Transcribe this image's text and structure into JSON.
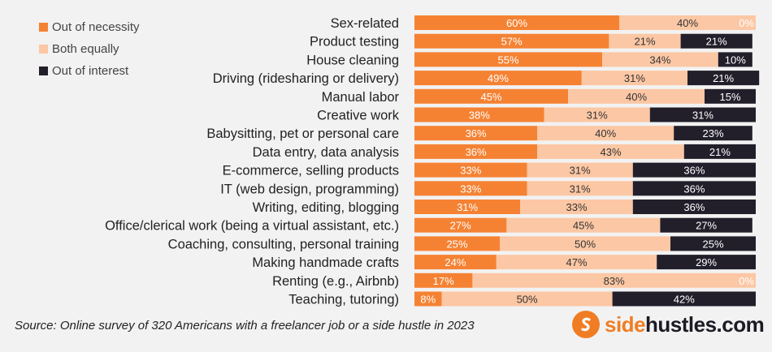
{
  "legend": [
    {
      "label": "Out of necessity",
      "color": "#f58233"
    },
    {
      "label": "Both equally",
      "color": "#fcc7a4"
    },
    {
      "label": "Out of interest",
      "color": "#221f2b"
    }
  ],
  "source": "Source: Online survey of 320 Americans with a freelancer job or a side hustle in 2023",
  "brand": {
    "prefix": "side",
    "rest": "hustles.com",
    "icon": "s-logo-icon"
  },
  "chart_data": {
    "type": "bar",
    "orientation": "horizontal",
    "stacked": true,
    "normalized": true,
    "title": "",
    "xlabel": "",
    "ylabel": "",
    "categories": [
      "Sex-related",
      "Product testing",
      "House cleaning",
      "Driving (ridesharing or delivery)",
      "Manual labor",
      "Creative work",
      "Babysitting, pet or personal care",
      "Data entry, data analysis",
      "E-commerce, selling products",
      "IT (web design, programming)",
      "Writing, editing, blogging",
      "Office/clerical work (being a virtual assistant, etc.)",
      "Coaching, consulting, personal training",
      "Making handmade crafts",
      "Renting (e.g., Airbnb)",
      "Teaching, tutoring)"
    ],
    "series": [
      {
        "name": "Out of necessity",
        "color": "#f58233",
        "label_color": "#ffffff",
        "values": [
          60,
          57,
          55,
          49,
          45,
          38,
          36,
          36,
          33,
          33,
          31,
          27,
          25,
          24,
          17,
          8
        ]
      },
      {
        "name": "Both equally",
        "color": "#fcc7a4",
        "label_color": "#333333",
        "values": [
          40,
          21,
          34,
          31,
          40,
          31,
          40,
          43,
          31,
          31,
          33,
          45,
          50,
          47,
          83,
          50
        ]
      },
      {
        "name": "Out of interest",
        "color": "#221f2b",
        "label_color": "#ffffff",
        "values": [
          0,
          21,
          10,
          21,
          15,
          31,
          23,
          21,
          36,
          36,
          36,
          27,
          25,
          29,
          0,
          42
        ]
      }
    ],
    "value_suffix": "%"
  }
}
